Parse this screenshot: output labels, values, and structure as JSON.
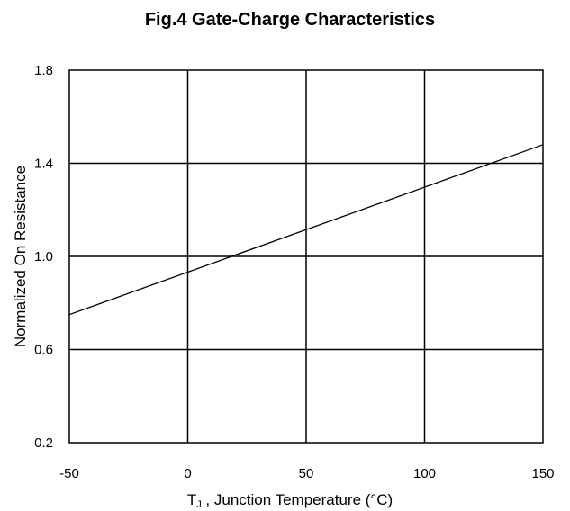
{
  "chart_data": {
    "type": "line",
    "title": "Fig.4 Gate-Charge Characteristics",
    "xlabel": {
      "main": "T",
      "subscript": "J",
      "rest": " , Junction Temperature (°C)"
    },
    "ylabel": "Normalized On Resistance",
    "xlim": [
      -50,
      150
    ],
    "ylim": [
      0.2,
      1.8
    ],
    "x_ticks": [
      "-50",
      "0",
      "50",
      "100",
      "150"
    ],
    "y_ticks": [
      "1.8",
      "1.4",
      "1.0",
      "0.6",
      "0.2"
    ],
    "x_tick_values": [
      -50,
      0,
      50,
      100,
      150
    ],
    "y_tick_values": [
      1.8,
      1.4,
      1.0,
      0.6,
      0.2
    ],
    "grid": true,
    "series": [
      {
        "x": [
          -50,
          150
        ],
        "y": [
          0.75,
          1.48
        ]
      }
    ],
    "line_color": "#000000"
  }
}
